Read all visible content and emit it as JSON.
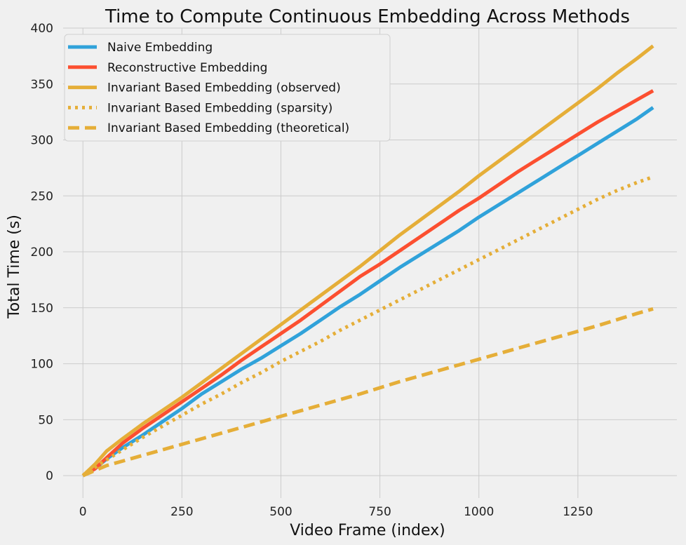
{
  "chart_data": {
    "type": "line",
    "title": "Time to Compute Continuous Embedding Across Methods",
    "xlabel": "Video Frame (index)",
    "ylabel": "Total Time (s)",
    "xlim": [
      -50,
      1500
    ],
    "ylim": [
      -20,
      400
    ],
    "xticks": [
      0,
      250,
      500,
      750,
      1000,
      1250
    ],
    "yticks": [
      0,
      50,
      100,
      150,
      200,
      250,
      300,
      350,
      400
    ],
    "grid": true,
    "legend_position": "top-left",
    "series": [
      {
        "name": "Naive Embedding",
        "color": "#30a2da",
        "style": "solid",
        "x": [
          0,
          30,
          60,
          100,
          150,
          200,
          250,
          300,
          350,
          400,
          450,
          500,
          550,
          600,
          650,
          700,
          750,
          800,
          850,
          900,
          950,
          1000,
          1050,
          1100,
          1150,
          1200,
          1250,
          1300,
          1350,
          1400,
          1440
        ],
        "y": [
          0,
          6,
          15,
          25,
          36,
          48,
          60,
          73,
          84,
          95,
          105,
          116,
          127,
          139,
          151,
          162,
          174,
          186,
          197,
          208,
          219,
          231,
          242,
          253,
          264,
          275,
          286,
          297,
          308,
          319,
          329
        ]
      },
      {
        "name": "Reconstructive Embedding",
        "color": "#fc4f30",
        "style": "solid",
        "x": [
          0,
          30,
          60,
          100,
          150,
          200,
          250,
          300,
          350,
          400,
          450,
          500,
          550,
          600,
          650,
          700,
          750,
          800,
          850,
          900,
          950,
          1000,
          1050,
          1100,
          1150,
          1200,
          1250,
          1300,
          1350,
          1400,
          1440
        ],
        "y": [
          0,
          6,
          16,
          29,
          42,
          54,
          66,
          78,
          90,
          103,
          115,
          127,
          139,
          152,
          165,
          178,
          189,
          201,
          213,
          225,
          237,
          248,
          260,
          272,
          283,
          294,
          305,
          316,
          326,
          336,
          344
        ]
      },
      {
        "name": "Invariant Based Embedding (observed)",
        "color": "#e5ae38",
        "style": "solid",
        "x": [
          0,
          30,
          60,
          100,
          150,
          200,
          250,
          300,
          350,
          400,
          450,
          500,
          550,
          600,
          650,
          700,
          750,
          800,
          850,
          900,
          950,
          1000,
          1050,
          1100,
          1150,
          1200,
          1250,
          1300,
          1350,
          1400,
          1440
        ],
        "y": [
          0,
          10,
          22,
          33,
          46,
          58,
          70,
          83,
          96,
          109,
          122,
          135,
          148,
          161,
          174,
          187,
          201,
          215,
          228,
          241,
          254,
          268,
          281,
          294,
          307,
          320,
          333,
          346,
          360,
          373,
          384
        ]
      },
      {
        "name": "Invariant Based Embedding (sparsity)",
        "color": "#e5ae38",
        "style": "dotted",
        "x": [
          0,
          50,
          100,
          150,
          200,
          250,
          300,
          350,
          400,
          450,
          500,
          550,
          600,
          650,
          700,
          750,
          800,
          850,
          900,
          950,
          1000,
          1050,
          1100,
          1150,
          1200,
          1250,
          1300,
          1350,
          1400,
          1440
        ],
        "y": [
          0,
          12,
          23,
          34,
          44,
          54,
          64,
          73,
          83,
          92,
          102,
          111,
          120,
          130,
          139,
          148,
          157,
          166,
          175,
          184,
          193,
          202,
          211,
          220,
          229,
          238,
          247,
          255,
          262,
          267
        ]
      },
      {
        "name": "Invariant Based Embedding (theoretical)",
        "color": "#e5ae38",
        "style": "dashed",
        "x": [
          0,
          60,
          100,
          200,
          300,
          400,
          500,
          600,
          700,
          800,
          900,
          1000,
          1100,
          1200,
          1300,
          1400,
          1440
        ],
        "y": [
          0,
          9,
          13,
          23,
          33,
          43,
          53,
          63,
          73,
          84,
          94,
          104,
          114,
          124,
          134,
          145,
          149
        ]
      }
    ]
  }
}
